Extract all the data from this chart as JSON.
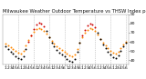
{
  "title": "Milwaukee Weather Outdoor Temperature vs THSW Index per Hour (24 Hours)",
  "title_fontsize": 3.8,
  "background_color": "#ffffff",
  "grid_color": "#aaaaaa",
  "temp_x": [
    1,
    2,
    3,
    4,
    5,
    6,
    7,
    8,
    9,
    10,
    11,
    12,
    13,
    14,
    15,
    16,
    17,
    18,
    19,
    20,
    21,
    22,
    23,
    24,
    25,
    26,
    27,
    28,
    29,
    30,
    31,
    32,
    33,
    34,
    35,
    36,
    37,
    38,
    39,
    40,
    41,
    42,
    43,
    44,
    45,
    46,
    47,
    48
  ],
  "temp_y": [
    58,
    56,
    54,
    52,
    50,
    48,
    47,
    50,
    56,
    62,
    67,
    71,
    74,
    75,
    74,
    72,
    69,
    65,
    61,
    58,
    55,
    53,
    51,
    49,
    47,
    45,
    44,
    46,
    52,
    59,
    65,
    70,
    73,
    75,
    74,
    72,
    68,
    63,
    59,
    56,
    53,
    50,
    48,
    47,
    49,
    53,
    57,
    60
  ],
  "thsw_x": [
    1,
    2,
    3,
    4,
    5,
    6,
    7,
    8,
    9,
    10,
    11,
    12,
    13,
    14,
    15,
    16,
    17,
    18,
    19,
    20,
    21,
    22,
    23,
    24,
    25,
    26,
    27,
    28,
    29,
    30,
    31,
    32,
    33,
    34,
    35,
    36,
    37,
    38,
    39,
    40,
    41,
    42,
    43,
    44,
    45,
    46,
    47,
    48
  ],
  "thsw_y": [
    55,
    52,
    49,
    47,
    44,
    42,
    41,
    44,
    52,
    60,
    67,
    74,
    79,
    81,
    80,
    77,
    72,
    65,
    59,
    55,
    51,
    48,
    46,
    44,
    41,
    39,
    38,
    41,
    49,
    59,
    67,
    73,
    78,
    80,
    79,
    76,
    70,
    63,
    57,
    53,
    49,
    46,
    43,
    42,
    45,
    50,
    55,
    59
  ],
  "temp_color": "#ff8800",
  "thsw_color_normal": "#000000",
  "thsw_color_high": "#cc0000",
  "high_thsw_indices": [
    10,
    11,
    12,
    13,
    14,
    15,
    16,
    31,
    32,
    33,
    34,
    35,
    36
  ],
  "marker_size": 2.0,
  "ylim_min": 35,
  "ylim_max": 90,
  "xlim_min": 0,
  "xlim_max": 49,
  "tick_fontsize": 3.2,
  "dashed_x": [
    6,
    12,
    18,
    24,
    30,
    36,
    42,
    48
  ],
  "y_ticks": [
    40,
    50,
    60,
    70,
    80,
    90
  ],
  "x_tick_positions": [
    1,
    2,
    3,
    4,
    5,
    6,
    7,
    8,
    9,
    10,
    11,
    12,
    13,
    14,
    15,
    16,
    17,
    18,
    19,
    20,
    21,
    22,
    23,
    24,
    25,
    26,
    27,
    28,
    29,
    30,
    31,
    32,
    33,
    34,
    35,
    36,
    37,
    38,
    39,
    40,
    41,
    42,
    43,
    44,
    45,
    46,
    47,
    48
  ],
  "x_tick_labels": [
    "1",
    "2",
    "3",
    "4",
    "5",
    "6",
    "1",
    "2",
    "3",
    "4",
    "5",
    "6",
    "1",
    "2",
    "3",
    "4",
    "5",
    "6",
    "1",
    "2",
    "3",
    "4",
    "5",
    "6",
    "1",
    "2",
    "3",
    "4",
    "5",
    "6",
    "1",
    "2",
    "3",
    "4",
    "5",
    "6",
    "1",
    "2",
    "3",
    "4",
    "5",
    "6",
    "1",
    "2",
    "3",
    "4",
    "5",
    "6"
  ]
}
